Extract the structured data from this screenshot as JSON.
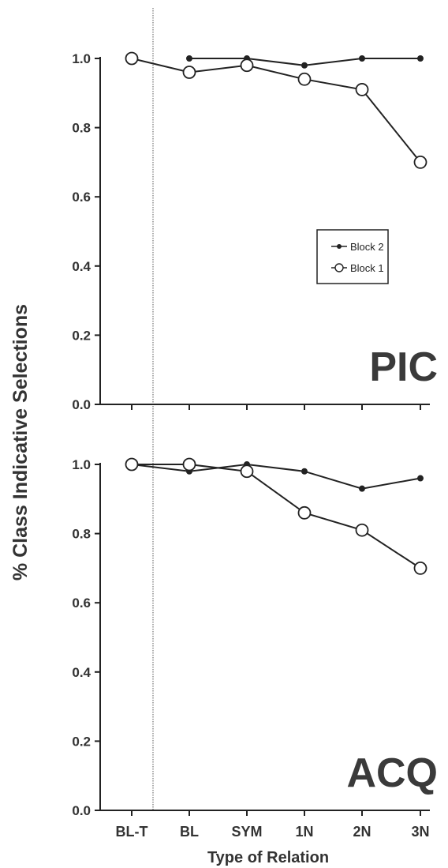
{
  "chart_data": [
    {
      "type": "line",
      "panel_label": "PIC",
      "categories": [
        "BL-T",
        "BL",
        "SYM",
        "1N",
        "2N",
        "3N"
      ],
      "ylim": [
        0,
        1.0
      ],
      "yticks": [
        "0.0",
        "0.2",
        "0.4",
        "0.6",
        "0.8",
        "1.0"
      ],
      "series": [
        {
          "name": "Block 2",
          "marker": "filled-circle",
          "values": [
            null,
            1.0,
            1.0,
            0.98,
            1.0,
            1.0
          ]
        },
        {
          "name": "Block 1",
          "marker": "open-circle",
          "values": [
            1.0,
            0.96,
            0.98,
            0.94,
            0.91,
            0.7
          ]
        }
      ],
      "legend": {
        "position": "right-middle",
        "entries": [
          "Block 2",
          "Block 1"
        ]
      }
    },
    {
      "type": "line",
      "panel_label": "ACQ",
      "categories": [
        "BL-T",
        "BL",
        "SYM",
        "1N",
        "2N",
        "3N"
      ],
      "ylim": [
        0,
        1.0
      ],
      "yticks": [
        "0.0",
        "0.2",
        "0.4",
        "0.6",
        "0.8",
        "1.0"
      ],
      "series": [
        {
          "name": "Block 2",
          "marker": "filled-circle",
          "values": [
            1.0,
            0.98,
            1.0,
            0.98,
            0.93,
            0.96
          ]
        },
        {
          "name": "Block 1",
          "marker": "open-circle",
          "values": [
            1.0,
            1.0,
            0.98,
            0.86,
            0.81,
            0.7
          ]
        }
      ]
    }
  ],
  "ylabel": "% Class Indicative Selections",
  "xlabel": "Type of Relation",
  "colors": {
    "line": "#222222",
    "text": "#333333",
    "divider": "#555555"
  }
}
